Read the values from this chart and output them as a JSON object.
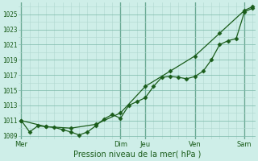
{
  "xlabel": "Pression niveau de la mer( hPa )",
  "bg_color": "#ceeee8",
  "grid_color_minor": "#b0d8d0",
  "grid_color_major": "#7ab8a8",
  "line_color": "#1a5c1a",
  "vline_color": "#4a8a6a",
  "ylim": [
    1008.5,
    1026.5
  ],
  "yticks": [
    1009,
    1011,
    1013,
    1015,
    1017,
    1019,
    1021,
    1023,
    1025
  ],
  "day_labels": [
    "Mer",
    "Dim",
    "Jeu",
    "Ven",
    "Sam"
  ],
  "day_positions": [
    0,
    12,
    15,
    21,
    27
  ],
  "xlim": [
    -0.3,
    28.3
  ],
  "series1_x": [
    0,
    1,
    2,
    3,
    4,
    5,
    6,
    7,
    8,
    9,
    10,
    11,
    12,
    13,
    14,
    15,
    16,
    17,
    18,
    19,
    20,
    21,
    22,
    23,
    24,
    25,
    26,
    27,
    28
  ],
  "series1_y": [
    1011.0,
    1009.5,
    1010.3,
    1010.2,
    1010.1,
    1009.8,
    1009.5,
    1009.1,
    1009.5,
    1010.3,
    1011.2,
    1011.8,
    1011.3,
    1013.0,
    1013.5,
    1014.0,
    1015.5,
    1016.7,
    1016.8,
    1016.7,
    1016.5,
    1016.8,
    1017.5,
    1019.0,
    1021.0,
    1021.5,
    1021.8,
    1025.3,
    1025.8
  ],
  "series2_x": [
    0,
    3,
    6,
    9,
    12,
    15,
    18,
    21,
    24,
    27,
    28
  ],
  "series2_y": [
    1011.0,
    1010.2,
    1010.0,
    1010.5,
    1012.0,
    1015.5,
    1017.5,
    1019.5,
    1022.5,
    1025.5,
    1026.0
  ],
  "marker1": "D",
  "marker2": "D",
  "marker_size": 2.5,
  "linewidth": 0.9
}
